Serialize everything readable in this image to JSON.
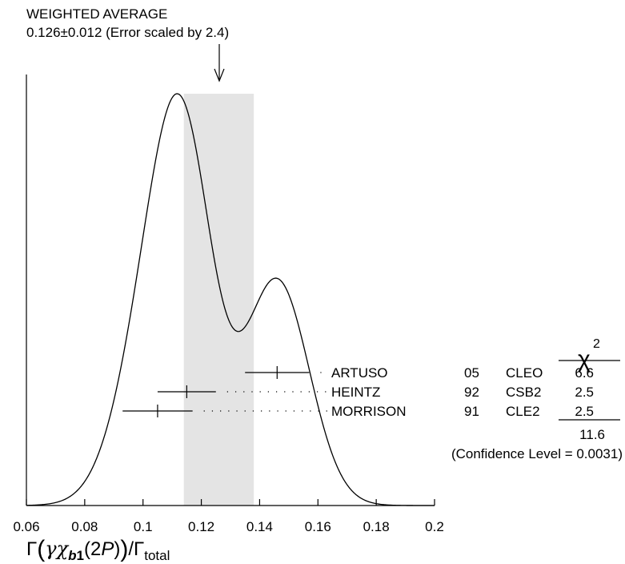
{
  "chart_data": {
    "type": "ideogram",
    "title": "WEIGHTED AVERAGE",
    "subtitle": "0.126±0.012 (Error scaled by 2.4)",
    "xlabel": "Γ(γχb1(2P))/Γtotal",
    "xlim": [
      0.06,
      0.2
    ],
    "x_ticks": [
      "0.06",
      "0.08",
      "0.1",
      "0.12",
      "0.14",
      "0.16",
      "0.18",
      "0.2"
    ],
    "weighted_average": {
      "value": 0.126,
      "error": 0.012
    },
    "measurements": [
      {
        "author": "ARTUSO",
        "year": "05",
        "experiment": "CLEO",
        "chi2": "6.6",
        "value": 0.146,
        "error": 0.011
      },
      {
        "author": "HEINTZ",
        "year": "92",
        "experiment": "CSB2",
        "chi2": "2.5",
        "value": 0.115,
        "error": 0.01
      },
      {
        "author": "MORRISON",
        "year": "91",
        "experiment": "CLE2",
        "chi2": "2.5",
        "value": 0.105,
        "error": 0.012
      }
    ],
    "chi2_header": "χ",
    "chi2_power": "2",
    "chi2_total": "11.6",
    "confidence_level": "(Confidence Level = 0.0031)",
    "grid": false
  }
}
